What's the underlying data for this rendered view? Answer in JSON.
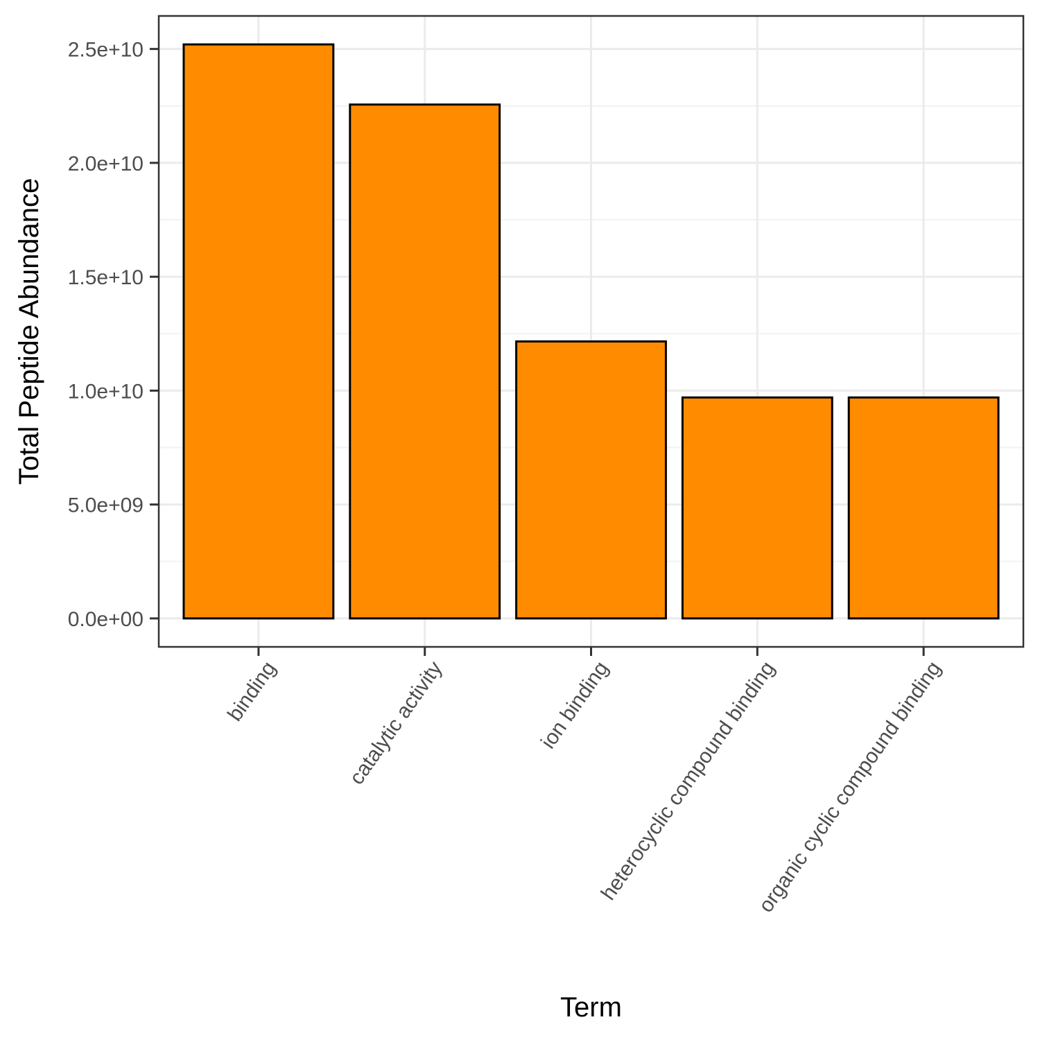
{
  "colors": {
    "bar_fill": "#ff8c00",
    "bar_stroke": "#000000",
    "panel_border": "#333333",
    "grid_major": "#ebebeb",
    "grid_minor": "#f2f2f2",
    "tick_text": "#4d4d4d"
  },
  "chart_data": {
    "type": "bar",
    "title": "",
    "xlabel": "Term",
    "ylabel": "Total Peptide Abundance",
    "categories": [
      "binding",
      "catalytic activity",
      "ion binding",
      "heterocyclic compound binding",
      "organic cyclic compound binding"
    ],
    "values": [
      25200000000,
      22560000000,
      12160000000,
      9700000000,
      9700000000
    ],
    "ylim": [
      -1250000000,
      26450000000
    ],
    "y_ticks": [
      0,
      5000000000,
      10000000000,
      15000000000,
      20000000000,
      25000000000
    ],
    "y_tick_labels": [
      "0.0e+00",
      "5.0e+09",
      "1.0e+10",
      "1.5e+10",
      "2.0e+10",
      "2.5e+10"
    ],
    "grid": true,
    "legend": "none"
  }
}
